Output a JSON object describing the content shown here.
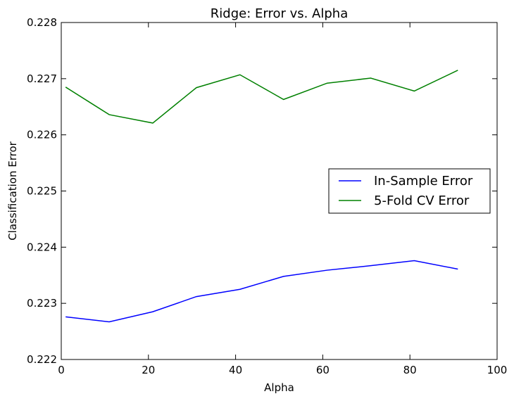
{
  "chart_data": {
    "type": "line",
    "title": "Ridge: Error vs. Alpha",
    "xlabel": "Alpha",
    "ylabel": "Classification Error",
    "xlim": [
      0,
      100
    ],
    "ylim": [
      0.222,
      0.228
    ],
    "xticks": [
      "0",
      "20",
      "40",
      "60",
      "80",
      "100"
    ],
    "yticks": [
      "0.222",
      "0.223",
      "0.224",
      "0.225",
      "0.226",
      "0.227",
      "0.228"
    ],
    "grid": false,
    "legend_position": "center-right",
    "x": [
      1,
      11,
      21,
      31,
      41,
      51,
      61,
      71,
      81,
      91
    ],
    "series": [
      {
        "name": "In-Sample Error",
        "color": "#0000ff",
        "values": [
          0.22276,
          0.22267,
          0.22285,
          0.22312,
          0.22325,
          0.22348,
          0.22359,
          0.22367,
          0.22376,
          0.22361
        ]
      },
      {
        "name": "5-Fold CV Error",
        "color": "#008000",
        "values": [
          0.22685,
          0.22636,
          0.22621,
          0.22684,
          0.22707,
          0.22663,
          0.22692,
          0.22701,
          0.22678,
          0.22715
        ]
      }
    ]
  }
}
